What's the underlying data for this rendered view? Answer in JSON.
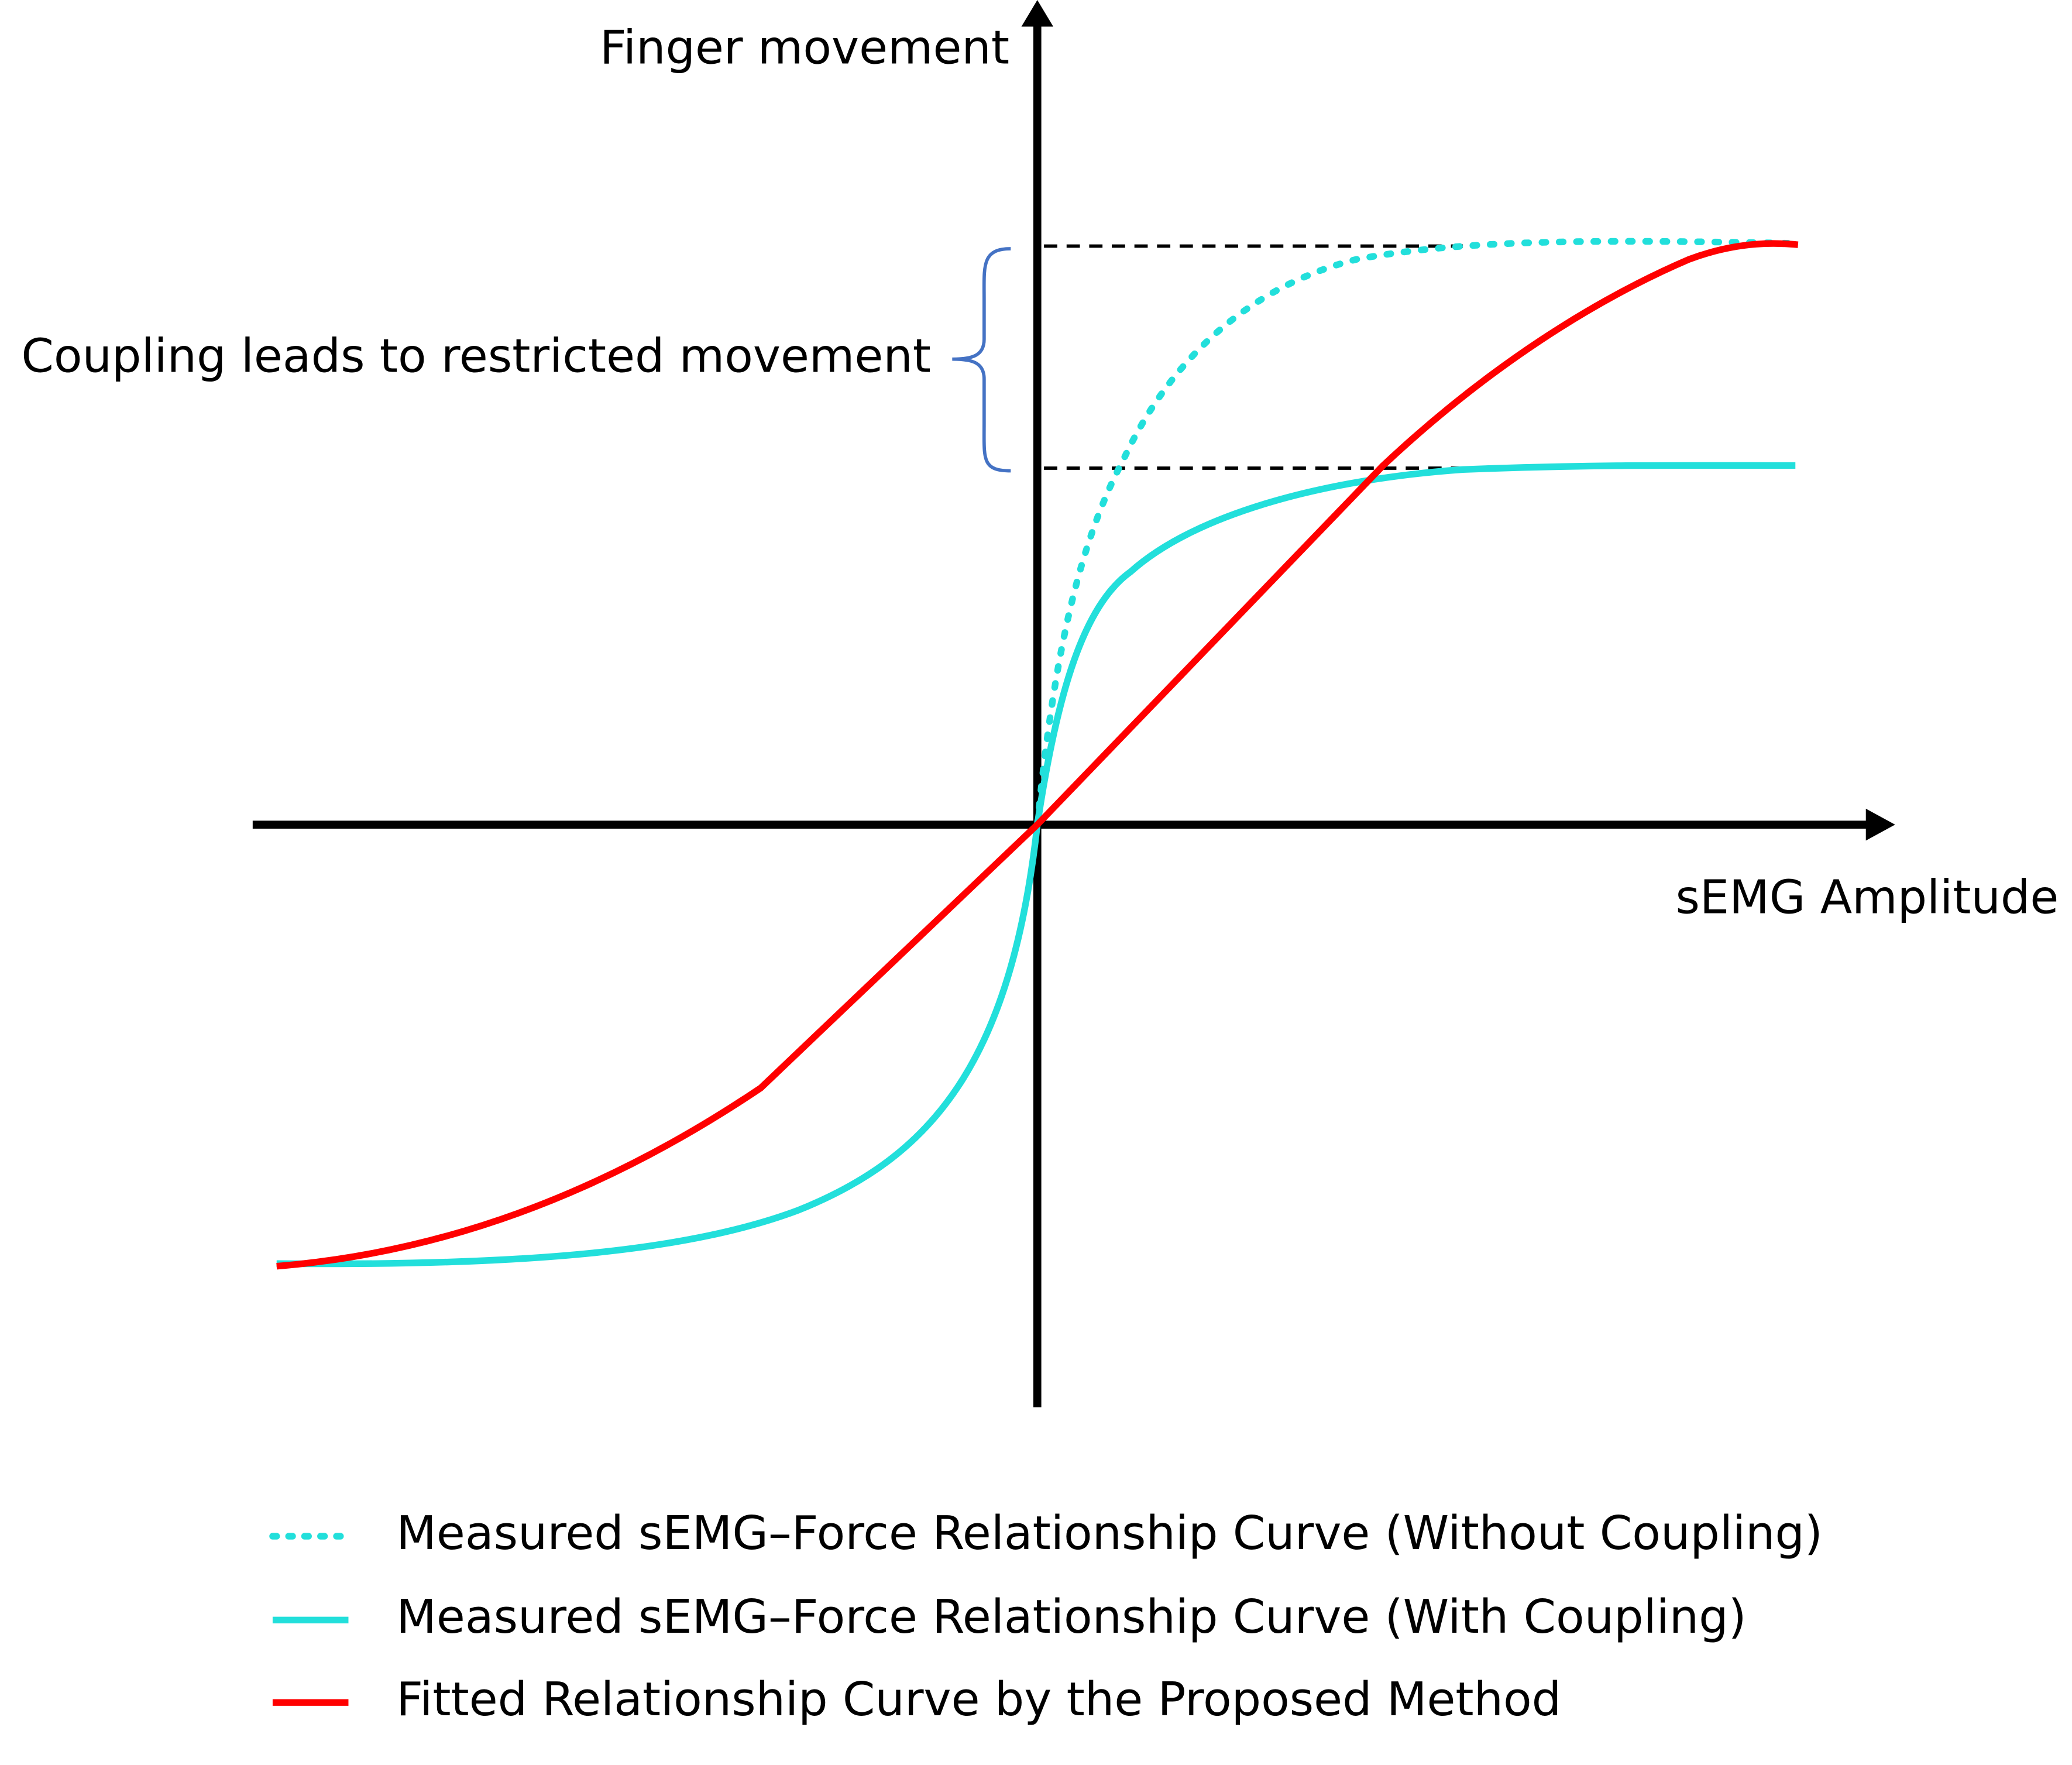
{
  "axes": {
    "y_label": "Finger movement",
    "x_label": "sEMG Amplitude"
  },
  "annotation": "Coupling leads to restricted movement",
  "legend": [
    {
      "label": "Measured sEMG–Force Relationship Curve (Without Coupling)"
    },
    {
      "label": "Measured sEMG–Force Relationship Curve (With Coupling)"
    },
    {
      "label": "Fitted Relationship Curve by the Proposed Method"
    }
  ]
}
